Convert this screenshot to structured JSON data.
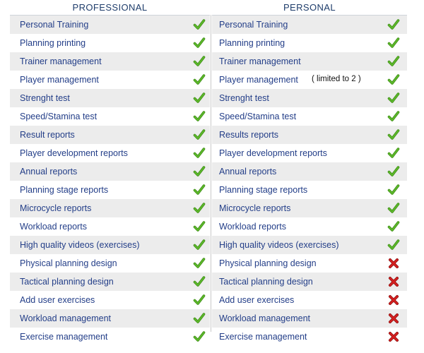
{
  "columns": {
    "professional": {
      "title": "PROFESSIONAL",
      "rows": [
        {
          "label": "Personal Training",
          "status": "check"
        },
        {
          "label": "Planning printing",
          "status": "check"
        },
        {
          "label": "Trainer management",
          "status": "check"
        },
        {
          "label": "Player management",
          "status": "check"
        },
        {
          "label": "Strenght test",
          "status": "check"
        },
        {
          "label": "Speed/Stamina test",
          "status": "check"
        },
        {
          "label": "Result reports",
          "status": "check"
        },
        {
          "label": "Player development reports",
          "status": "check"
        },
        {
          "label": "Annual reports",
          "status": "check"
        },
        {
          "label": "Planning stage reports",
          "status": "check"
        },
        {
          "label": "Microcycle reports",
          "status": "check"
        },
        {
          "label": "Workload reports",
          "status": "check"
        },
        {
          "label": "High quality videos (exercises)",
          "status": "check"
        },
        {
          "label": "Physical planning design",
          "status": "check"
        },
        {
          "label": "Tactical planning design",
          "status": "check"
        },
        {
          "label": "Add user exercises",
          "status": "check"
        },
        {
          "label": "Workload management",
          "status": "check"
        },
        {
          "label": "Exercise management",
          "status": "check"
        }
      ]
    },
    "personal": {
      "title": "PERSONAL",
      "rows": [
        {
          "label": "Personal Training",
          "status": "check"
        },
        {
          "label": "Planning printing",
          "status": "check"
        },
        {
          "label": "Trainer management",
          "status": "check"
        },
        {
          "label": "Player management",
          "note": "( limited to 2 )",
          "status": "check"
        },
        {
          "label": "Strenght test",
          "status": "check"
        },
        {
          "label": "Speed/Stamina test",
          "status": "check"
        },
        {
          "label": "Results reports",
          "status": "check"
        },
        {
          "label": "Player development reports",
          "status": "check"
        },
        {
          "label": "Annual reports",
          "status": "check"
        },
        {
          "label": "Planning stage reports",
          "status": "check"
        },
        {
          "label": "Microcycle reports",
          "status": "check"
        },
        {
          "label": "Workload reports",
          "status": "check"
        },
        {
          "label": "High quality videos (exercises)",
          "status": "check"
        },
        {
          "label": "Physical planning design",
          "status": "cross"
        },
        {
          "label": "Tactical planning design",
          "status": "cross"
        },
        {
          "label": "Add user exercises",
          "status": "cross"
        },
        {
          "label": "Workload management",
          "status": "cross"
        },
        {
          "label": "Exercise management",
          "status": "cross"
        }
      ]
    }
  },
  "icons": {
    "check": "check-icon",
    "cross": "cross-icon"
  },
  "colors": {
    "header_text": "#1f3d6b",
    "row_text": "#233e88",
    "row_shade": "#ececec",
    "check": "#5cb82a",
    "cross": "#d42020"
  }
}
